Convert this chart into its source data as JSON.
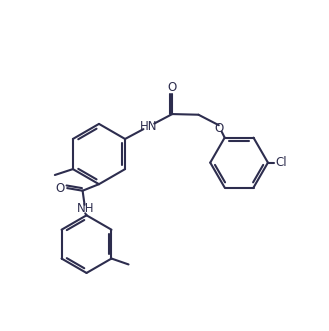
{
  "background_color": "#ffffff",
  "line_color": "#2d2d4e",
  "text_color": "#2d2d4e",
  "line_width": 1.5,
  "font_size": 8.5,
  "figsize": [
    3.29,
    3.31
  ],
  "dpi": 100,
  "xlim": [
    0,
    10
  ],
  "ylim": [
    0,
    10
  ]
}
